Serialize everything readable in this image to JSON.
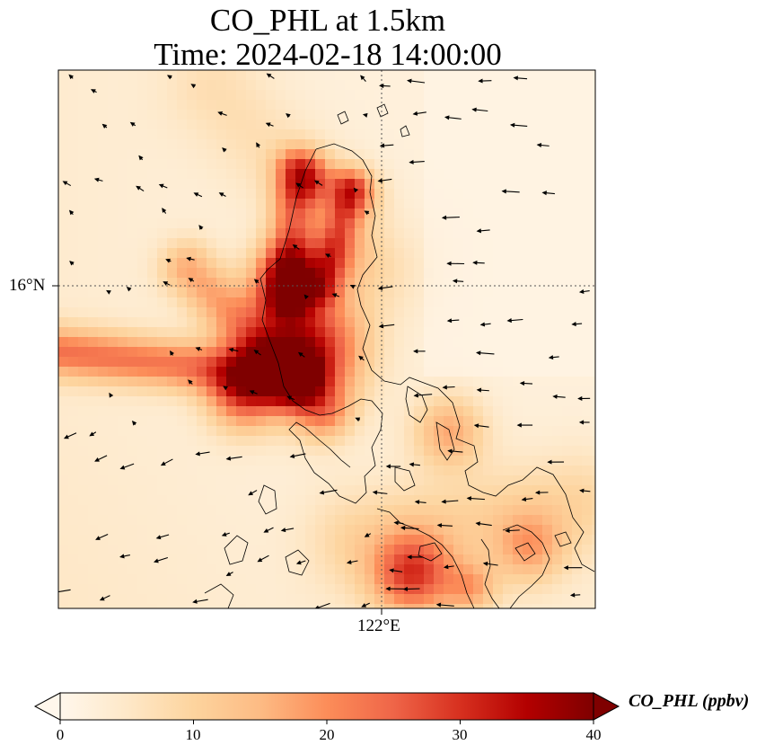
{
  "title": {
    "line1": "CO_PHL at 1.5km",
    "line2": "Time: 2024-02-18 14:00:00"
  },
  "axes": {
    "lat_label": "16°N",
    "lon_label": "122°E"
  },
  "colorbar": {
    "label": "CO_PHL (ppbv)",
    "min": 0,
    "max": 40,
    "ticks": [
      "0",
      "10",
      "20",
      "30",
      "40"
    ],
    "extend": "both",
    "colormap": "OrRd",
    "colors": [
      "#fff7ec",
      "#fee8c8",
      "#fdd49e",
      "#fdbb84",
      "#fc8d59",
      "#ef6548",
      "#d7301f",
      "#b30000",
      "#7f0000"
    ]
  },
  "colors": {
    "gridline": "#555555",
    "coast": "#000000",
    "wind_arrow": "#000000"
  }
}
